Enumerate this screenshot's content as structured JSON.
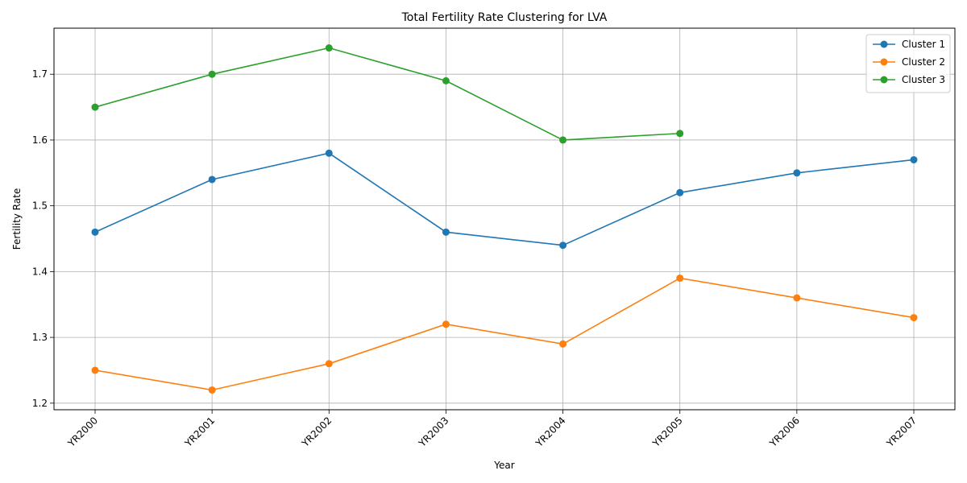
{
  "chart_data": {
    "type": "line",
    "title": "Total Fertility Rate Clustering for LVA",
    "xlabel": "Year",
    "ylabel": "Fertility Rate",
    "categories": [
      "YR2000",
      "YR2001",
      "YR2002",
      "YR2003",
      "YR2004",
      "YR2005",
      "YR2006",
      "YR2007"
    ],
    "ylim": [
      1.19,
      1.77
    ],
    "yticks": [
      "1.2",
      "1.3",
      "1.4",
      "1.5",
      "1.6",
      "1.7"
    ],
    "grid": true,
    "legend_position": "top-right",
    "series": [
      {
        "name": "Cluster 1",
        "color": "#1f77b4",
        "values": [
          1.46,
          1.54,
          1.58,
          1.46,
          1.44,
          1.52,
          1.55,
          1.57
        ]
      },
      {
        "name": "Cluster 2",
        "color": "#ff7f0e",
        "values": [
          1.25,
          1.22,
          1.26,
          1.32,
          1.29,
          1.39,
          1.36,
          1.33
        ]
      },
      {
        "name": "Cluster 3",
        "color": "#2ca02c",
        "values": [
          1.65,
          1.7,
          1.74,
          1.69,
          1.6,
          1.61,
          null,
          null
        ]
      }
    ]
  }
}
